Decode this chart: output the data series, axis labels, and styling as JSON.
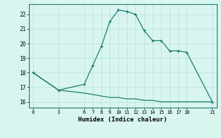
{
  "line1_x": [
    0,
    3,
    6,
    7,
    8,
    9,
    10,
    11,
    12,
    13,
    14,
    15,
    16,
    17,
    18,
    21
  ],
  "line1_y": [
    18.0,
    16.8,
    17.2,
    18.5,
    19.8,
    21.5,
    22.3,
    22.2,
    22.0,
    20.9,
    20.2,
    20.2,
    19.5,
    19.5,
    19.4,
    16.0
  ],
  "line2_x": [
    0,
    3,
    6,
    7,
    8,
    9,
    10,
    11,
    12,
    13,
    14,
    15,
    16,
    17,
    18,
    21
  ],
  "line2_y": [
    18.0,
    16.8,
    16.6,
    16.5,
    16.4,
    16.3,
    16.3,
    16.2,
    16.2,
    16.1,
    16.1,
    16.0,
    16.0,
    16.0,
    16.0,
    16.0
  ],
  "color": "#1a7a6e",
  "bg_color": "#d8f5f0",
  "grid_color": "#b8ddd8",
  "xlabel": "Humidex (Indice chaleur)",
  "xticks": [
    0,
    3,
    6,
    7,
    8,
    9,
    10,
    11,
    12,
    13,
    14,
    15,
    16,
    17,
    18,
    21
  ],
  "yticks": [
    16,
    17,
    18,
    19,
    20,
    21,
    22
  ],
  "xlim": [
    -0.5,
    21.5
  ],
  "ylim": [
    15.6,
    22.7
  ]
}
